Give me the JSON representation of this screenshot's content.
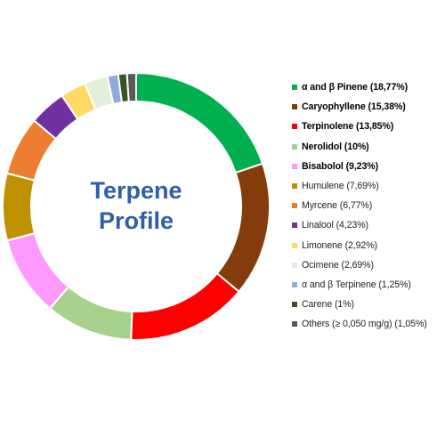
{
  "chart_data": {
    "type": "pie",
    "title": "Terpene Profile",
    "title_lines": [
      "Terpene",
      "Profile"
    ],
    "legend_position": "right",
    "series": [
      {
        "label": "α and β Pinene (18,77%)",
        "value": 18.77,
        "color": "#00b050",
        "bold": true
      },
      {
        "label": "Caryophyllene (15,38%)",
        "value": 15.38,
        "color": "#843c0c",
        "bold": true
      },
      {
        "label": "Terpinolene (13,85%)",
        "value": 13.85,
        "color": "#ff0000",
        "bold": true
      },
      {
        "label": "Nerolidol (10%)",
        "value": 10.0,
        "color": "#a9d18e",
        "bold": true
      },
      {
        "label": "Bisabolol (9,23%)",
        "value": 9.23,
        "color": "#ff99ff",
        "bold": true
      },
      {
        "label": "Humulene (7,69%)",
        "value": 7.69,
        "color": "#bf9000",
        "bold": false
      },
      {
        "label": "Myrcene (6,77%)",
        "value": 6.77,
        "color": "#ed7d31",
        "bold": false
      },
      {
        "label": "Linalool (4,23%)",
        "value": 4.23,
        "color": "#7030a0",
        "bold": false
      },
      {
        "label": "Limonene (2,92%)",
        "value": 2.92,
        "color": "#ffd966",
        "bold": false
      },
      {
        "label": "Ocimene (2,69%)",
        "value": 2.69,
        "color": "#e2f0d9",
        "bold": false
      },
      {
        "label": "α and β Terpinene (1,25%)",
        "value": 1.25,
        "color": "#8faadc",
        "bold": false
      },
      {
        "label": "Carene (1%)",
        "value": 1.0,
        "color": "#375623",
        "bold": false
      },
      {
        "label": "Others (≥ 0,050 mg/g) (1,05%)",
        "value": 1.05,
        "color": "#595959",
        "bold": false
      }
    ]
  }
}
